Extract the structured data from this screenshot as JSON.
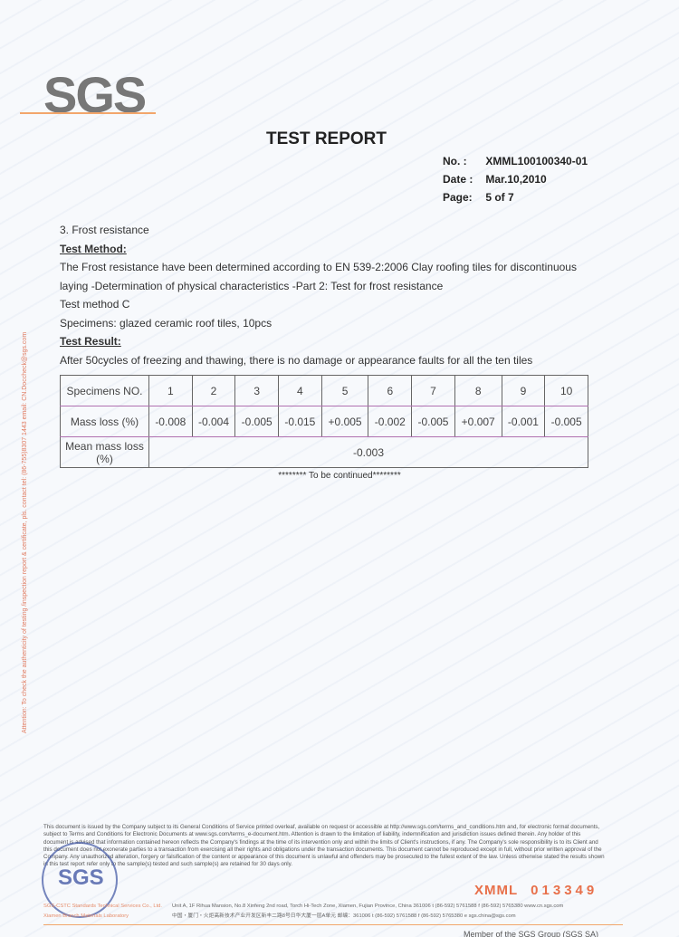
{
  "logo": "SGS",
  "title": "TEST REPORT",
  "meta": {
    "no_label": "No.  :",
    "no": "XMML100100340-01",
    "date_label": "Date :",
    "date": "Mar.10,2010",
    "page_label": "Page:",
    "page": "5 of 7"
  },
  "section": "3. Frost resistance",
  "method_heading": "Test Method:",
  "method_text": "The Frost resistance have been determined according to EN 539-2:2006 Clay roofing tiles for discontinuous laying -Determination of physical characteristics -Part 2: Test for frost resistance",
  "method_c": "Test method C",
  "specimens": "Specimens: glazed ceramic roof tiles, 10pcs",
  "result_heading": "Test Result:",
  "result_text": "After 50cycles of freezing and thawing, there is no damage or appearance faults for all the ten tiles",
  "table": {
    "row1_label": "Specimens NO.",
    "numbers": [
      "1",
      "2",
      "3",
      "4",
      "5",
      "6",
      "7",
      "8",
      "9",
      "10"
    ],
    "row2_label": "Mass loss (%)",
    "values": [
      "-0.008",
      "-0.004",
      "-0.005",
      "-0.015",
      "+0.005",
      "-0.002",
      "-0.005",
      "+0.007",
      "-0.001",
      "-0.005"
    ],
    "row3_label": "Mean mass loss (%)",
    "mean": "-0.003"
  },
  "continued": "******** To be continued********",
  "side_text": "Attention: To check the authenticity of testing /inspection report & certificate, pls. contact tel: (86-755)8307 1443 email: CN.Doccheck@sgs.com",
  "disclaimer": "This document is issued by the Company subject to its General Conditions of Service printed overleaf, available on request or accessible at http://www.sgs.com/terms_and_conditions.htm and, for electronic format documents, subject to Terms and Conditions for Electronic Documents at www.sgs.com/terms_e-document.htm. Attention is drawn to the limitation of liability, indemnification and jurisdiction issues defined therein. Any holder of this document is advised that information contained hereon reflects the Company's findings at the time of its intervention only and within the limits of Client's instructions, if any. The Company's sole responsibility is to its Client and this document does not exonerate parties to a transaction from exercising all their rights and obligations under the transaction documents. This document cannot be reproduced except in full, without prior written approval of the Company. Any unauthorized alteration, forgery or falsification of the content or appearance of this document is unlawful and offenders may be prosecuted to the fullest extent of the law. Unless otherwise stated the results shown in this test report refer only to the sample(s) tested and such sample(s) are retained for 30 days only.",
  "stamp": "SGS",
  "serial_prefix": "XMML",
  "serial_no": "013349",
  "company": "SGS-CSTC Standards Technical Services Co., Ltd. Xiamen Branch Materials Laboratory",
  "address1": "Unit A, 1F Rihua Mansion, No.8 Xinfeng 2nd road, Torch Hi-Tech Zone, Xiamen, Fujian Province, China 361006   t (86-592) 5761588   f (86-592) 5765380   www.cn.sgs.com",
  "address2": "中国・厦门・火炬高新技术产业开发区新丰二路8号日华大厦一层A单元  邮编：361006   t (86-592) 5761588   f (86-592) 5765380   e sgs.china@sgs.com",
  "member": "Member of the SGS Group (SGS SA)"
}
